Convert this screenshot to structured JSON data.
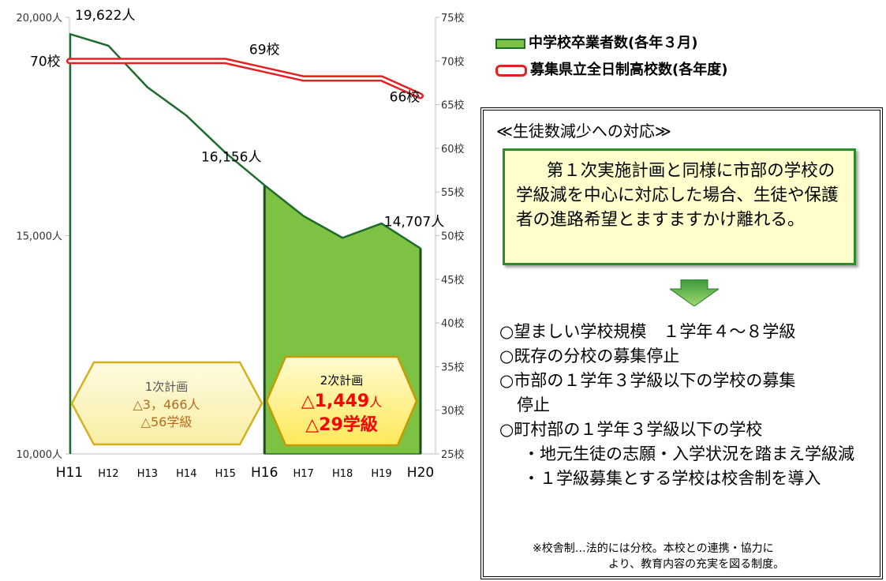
{
  "chart_data": {
    "type": "line",
    "categories": [
      "H11",
      "H12",
      "H13",
      "H14",
      "H15",
      "H16",
      "H17",
      "H18",
      "H19",
      "H20"
    ],
    "series": [
      {
        "name": "中学校卒業者数(各年３月)",
        "axis": "left",
        "unit": "人",
        "values": [
          19622,
          19350,
          18400,
          17750,
          16900,
          16156,
          15450,
          14950,
          15280,
          14707
        ],
        "color": "#1e6b2e",
        "fill_color": "#7dc242"
      },
      {
        "name": "募集県立全日制高校数(各年度)",
        "axis": "right",
        "unit": "校",
        "values": [
          70,
          70,
          70,
          70,
          70,
          69,
          68,
          68,
          68,
          66
        ],
        "color": "#e62020"
      }
    ],
    "left_axis": {
      "ylim": [
        10000,
        20000
      ],
      "ticks": [
        "10,000人",
        "15,000人",
        "20,000人"
      ],
      "tick_values": [
        10000,
        15000,
        20000
      ]
    },
    "right_axis": {
      "ylim": [
        25,
        75
      ],
      "ticks": [
        "25校",
        "30校",
        "35校",
        "40校",
        "45校",
        "50校",
        "55校",
        "60校",
        "65校",
        "70校",
        "75校"
      ],
      "tick_values": [
        25,
        30,
        35,
        40,
        45,
        50,
        55,
        60,
        65,
        70,
        75
      ]
    },
    "data_labels": [
      {
        "text": "19,622人",
        "series": 0,
        "index": 0
      },
      {
        "text": "16,156人",
        "series": 0,
        "index": 5
      },
      {
        "text": "14,707人",
        "series": 0,
        "index": 9
      },
      {
        "text": "70校",
        "series": 1,
        "index": 0
      },
      {
        "text": "69校",
        "series": 1,
        "index": 5
      },
      {
        "text": "66校",
        "series": 1,
        "index": 9
      }
    ],
    "shaded_range": {
      "from": "H16",
      "to": "H20",
      "series": 0
    },
    "annotations": [
      {
        "title": "1次計画",
        "line1": "△3，466人",
        "line2": "△56学級",
        "from": "H11",
        "to": "H16"
      },
      {
        "title": "2次計画",
        "line1": "△1,449",
        "line1_unit": "人",
        "line2": "△29学級",
        "from": "H16",
        "to": "H20"
      }
    ],
    "grid": false
  },
  "panel": {
    "title": "≪生徒数減少への対応≫",
    "note": "第１次実施計画と同様に市部の学校の学級減を中心に対応した場合、生徒や保護者の進路希望とますますかけ離れる。",
    "items": [
      {
        "text": "○望ましい学校規模　１学年４～８学級",
        "level": 0
      },
      {
        "text": "○既存の分校の募集停止",
        "level": 0
      },
      {
        "text": "○市部の１学年３学級以下の学校の募集",
        "level": 0
      },
      {
        "text": "停止",
        "level": 1
      },
      {
        "text": "○町村部の１学年３学級以下の学校",
        "level": 0
      },
      {
        "text": "・地元生徒の志願・入学状況を踏まえ学級減",
        "level": 2
      },
      {
        "text": "・１学級募集とする学校は校舎制を導入",
        "level": 2
      }
    ],
    "footnote_1": "※校舎制…法的には分校。本校との連携・協力に",
    "footnote_2": "より、教育内容の充実を図る制度。"
  }
}
